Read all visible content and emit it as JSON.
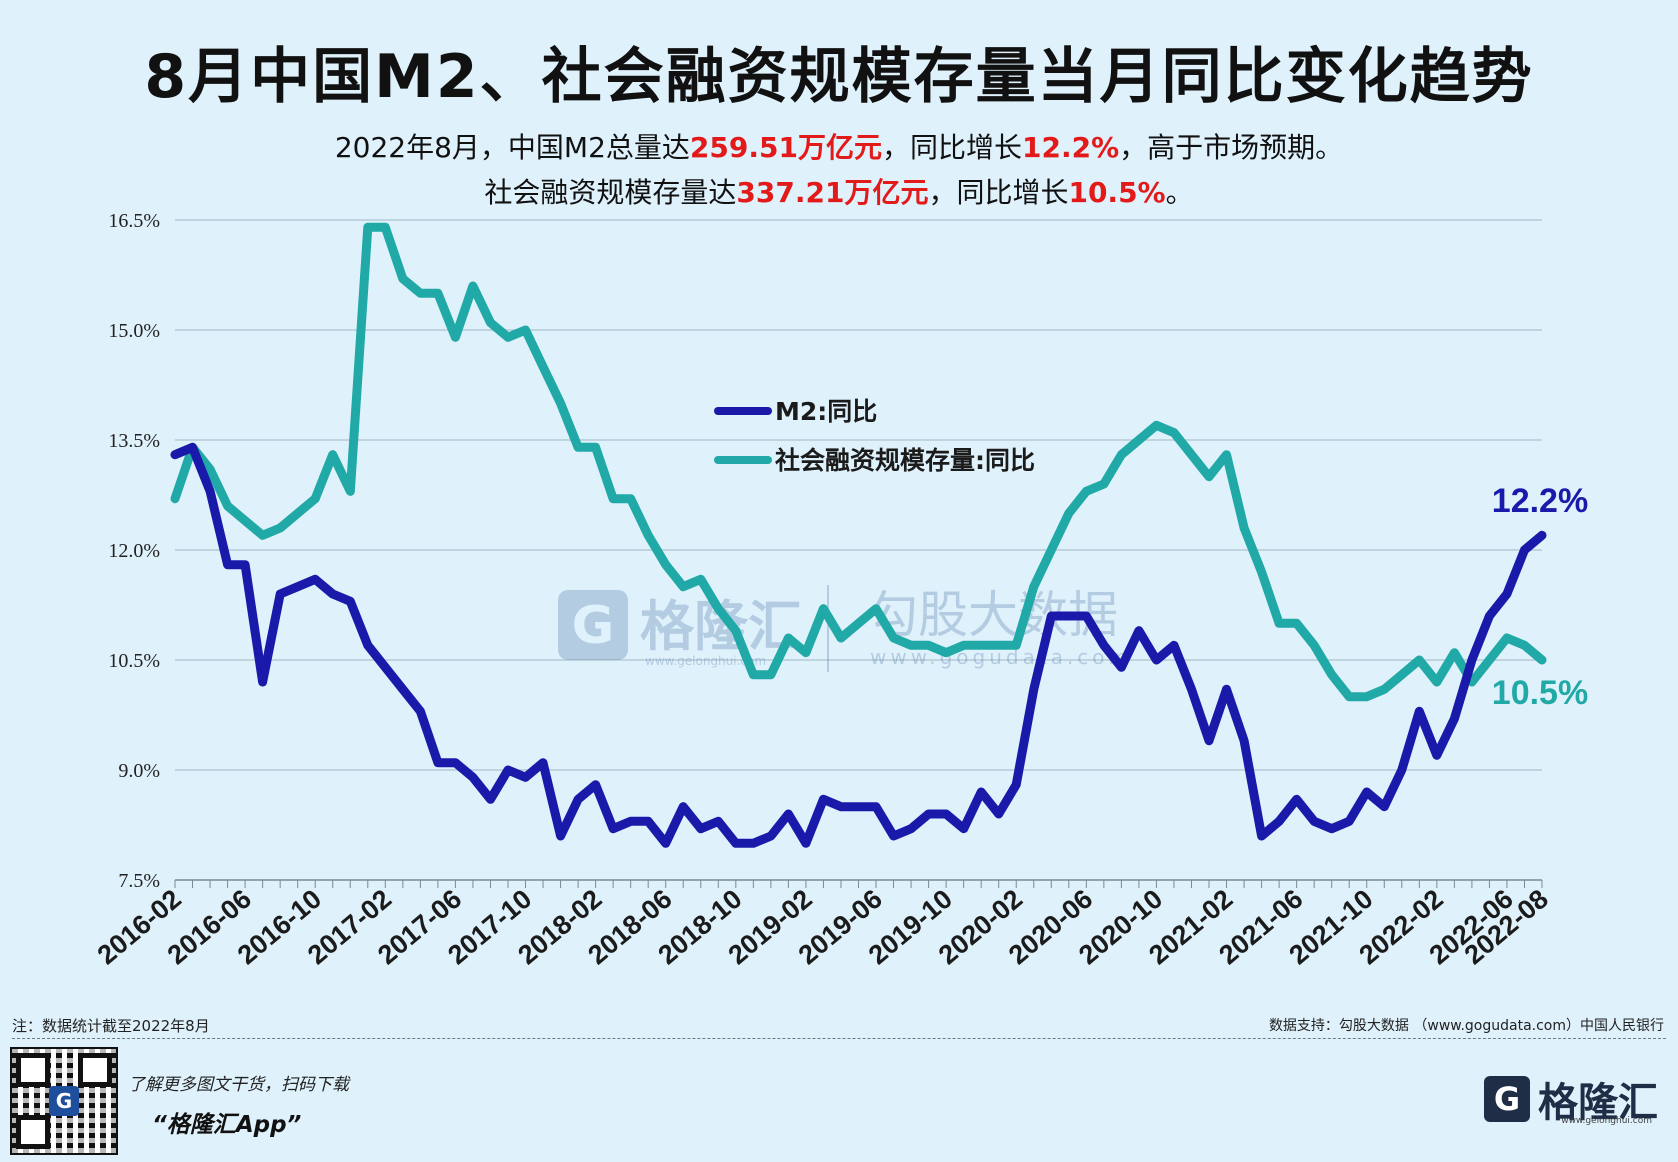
{
  "title": "8月中国M2、社会融资规模存量当月同比变化趋势",
  "subtitle1": {
    "p1": "2022年8月，中国M2总量达",
    "v1": "259.51万亿元",
    "p2": "，同比增长",
    "v2": "12.2%",
    "p3": "，高于市场预期。"
  },
  "subtitle2": {
    "p1": "社会融资规模存量达",
    "v1": "337.21万亿元",
    "p2": "，同比增长",
    "v2": "10.5%",
    "p3": "。"
  },
  "footnote_left": "注：数据统计截至2022年8月",
  "footnote_right": "数据支持：勾股大数据 （www.gogudata.com）中国人民银行",
  "promo_line1": "了解更多图文干货，扫码下载",
  "promo_line2": "“格隆汇App”",
  "brand_icon": "G",
  "brand_name": "格隆汇",
  "brand_url": "www.gelonghui.com",
  "watermark": {
    "left_text": "格隆汇",
    "left_url": "www.gelonghui.com",
    "right_text": "勾股大数据",
    "right_url": "www.gogudata.com"
  },
  "colors": {
    "m2": "#1a1aaa",
    "tsf": "#20a9a6",
    "red": "#e21a1a",
    "background": "#dff1fb",
    "grid": "#b6cbd6"
  },
  "chart_data": {
    "type": "line",
    "ylim": [
      7.5,
      16.5
    ],
    "yticks": [
      "7.5%",
      "9.0%",
      "10.5%",
      "12.0%",
      "13.5%",
      "15.0%",
      "16.5%"
    ],
    "ytick_values": [
      7.5,
      9.0,
      10.5,
      12.0,
      13.5,
      15.0,
      16.5
    ],
    "xtick_labels": [
      "2016-02",
      "2016-06",
      "2016-10",
      "2017-02",
      "2017-06",
      "2017-10",
      "2018-02",
      "2018-06",
      "2018-10",
      "2019-02",
      "2019-06",
      "2019-10",
      "2020-02",
      "2020-06",
      "2020-10",
      "2021-02",
      "2021-06",
      "2021-10",
      "2022-02",
      "2022-06",
      "2022-08"
    ],
    "x_start": "2016-02",
    "x_end": "2022-08",
    "grid": true,
    "legend_position": "upper-center",
    "series": [
      {
        "name": "M2:同比",
        "values": [
          13.3,
          13.4,
          12.8,
          11.8,
          11.8,
          10.2,
          11.4,
          11.5,
          11.6,
          11.4,
          11.3,
          10.7,
          10.4,
          10.1,
          9.8,
          9.1,
          9.1,
          8.9,
          8.6,
          9.0,
          8.9,
          9.1,
          8.1,
          8.6,
          8.8,
          8.2,
          8.3,
          8.3,
          8.0,
          8.5,
          8.2,
          8.3,
          8.0,
          8.0,
          8.1,
          8.4,
          8.0,
          8.6,
          8.5,
          8.5,
          8.5,
          8.1,
          8.2,
          8.4,
          8.4,
          8.2,
          8.7,
          8.4,
          8.8,
          10.1,
          11.1,
          11.1,
          11.1,
          10.7,
          10.4,
          10.9,
          10.5,
          10.7,
          10.1,
          9.4,
          10.1,
          9.4,
          8.1,
          8.3,
          8.6,
          8.3,
          8.2,
          8.3,
          8.7,
          8.5,
          9.0,
          9.8,
          9.2,
          9.7,
          10.5,
          11.1,
          11.4,
          12.0,
          12.2
        ],
        "end_label": "12.2%"
      },
      {
        "name": "社会融资规模存量:同比",
        "values": [
          12.7,
          13.4,
          13.1,
          12.6,
          12.4,
          12.2,
          12.3,
          12.5,
          12.7,
          13.3,
          12.8,
          16.4,
          16.4,
          15.7,
          15.5,
          15.5,
          14.9,
          15.6,
          15.1,
          14.9,
          15.0,
          14.5,
          14.0,
          13.4,
          13.4,
          12.7,
          12.7,
          12.2,
          11.8,
          11.5,
          11.6,
          11.2,
          10.9,
          10.3,
          10.3,
          10.8,
          10.6,
          11.2,
          10.8,
          11.0,
          11.2,
          10.8,
          10.7,
          10.7,
          10.6,
          10.7,
          10.7,
          10.7,
          10.7,
          11.5,
          12.0,
          12.5,
          12.8,
          12.9,
          13.3,
          13.5,
          13.7,
          13.6,
          13.3,
          13.0,
          13.3,
          12.3,
          11.7,
          11.0,
          11.0,
          10.7,
          10.3,
          10.0,
          10.0,
          10.1,
          10.3,
          10.5,
          10.2,
          10.6,
          10.2,
          10.5,
          10.8,
          10.7,
          10.5
        ],
        "end_label": "10.5%"
      }
    ]
  }
}
